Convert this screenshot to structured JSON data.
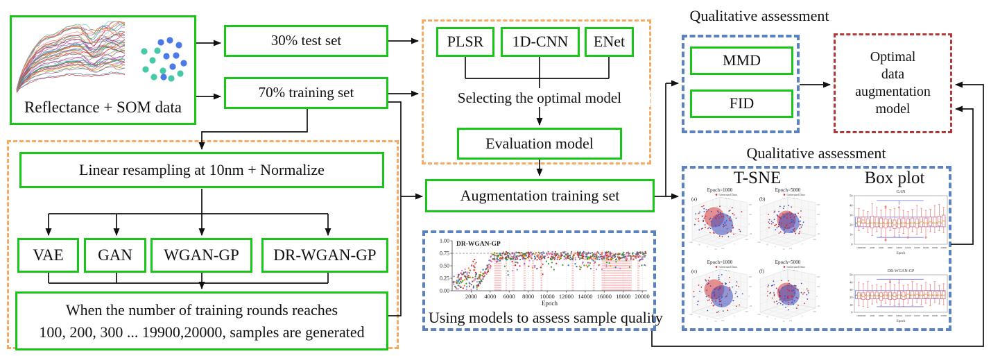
{
  "title": "Data augmentation workflow diagram",
  "colors": {
    "box_green": "#17c617",
    "dash_orange": "#f7aa63",
    "dash_blue": "#5a82c3",
    "dash_red": "#b03a3a",
    "line_black": "#111111"
  },
  "flow": {
    "reflectance_label": "Reflectance + SOM data",
    "test30": "30% test set",
    "train70": "70% training set",
    "plsr": "PLSR",
    "cnn": "1D-CNN",
    "enet": "ENet",
    "selecting": "Selecting the optimal model",
    "evaluation": "Evaluation model",
    "linear": "Linear resampling at 10nm + Normalize",
    "vae": "VAE",
    "gan": "GAN",
    "wgangp": "WGAN-GP",
    "drwgangp": "DR-WGAN-GP",
    "when_line1": "When the number of training rounds reaches",
    "when_line2": "100, 200, 300 ... 19900,20000, samples are generated",
    "augment": "Augmentation training set",
    "using_models": "Using models to assess sample quality",
    "qual1": "Qualitative assessment",
    "qual2": "Qualitative assessment",
    "mmd": "MMD",
    "fid": "FID",
    "optimal_line1": "Optimal",
    "optimal_line2": "data",
    "optimal_line3": "augmentation",
    "optimal_line4": "model"
  },
  "spectra": {
    "n_curves": 48,
    "palette": [
      "#e41a1c",
      "#377eb8",
      "#4daf4a",
      "#984ea3",
      "#ff7f00",
      "#a65628",
      "#f781bf",
      "#66c2a5",
      "#1b9e77",
      "#d95f02",
      "#7570b3",
      "#e7298a",
      "#2b8cbe",
      "#c51b8a",
      "#31a354",
      "#756bb1",
      "#636363",
      "#fdae61",
      "#80b1d3",
      "#fb8072"
    ]
  },
  "som_dots": {
    "blue_color": "#4b79e8",
    "teal_color": "#46c9a8",
    "teal": [
      [
        6,
        20
      ],
      [
        18,
        33
      ],
      [
        8,
        46
      ],
      [
        20,
        57
      ],
      [
        33,
        48
      ],
      [
        45,
        59
      ],
      [
        58,
        52
      ],
      [
        25,
        19
      ]
    ],
    "blue": [
      [
        30,
        7
      ],
      [
        43,
        4
      ],
      [
        56,
        11
      ],
      [
        38,
        27
      ],
      [
        52,
        26
      ],
      [
        63,
        37
      ],
      [
        47,
        42
      ],
      [
        34,
        57
      ]
    ]
  },
  "chart_data": [
    {
      "type": "scatter",
      "title": "DR-WGAN-GP",
      "xlabel": "Epoch",
      "xticks": [
        2000,
        4000,
        6000,
        8000,
        10000,
        12000,
        14000,
        16000,
        18000,
        20000
      ],
      "ytick_labels": [
        "0.00",
        "0.25",
        "0.50",
        "0.75",
        "1.00"
      ],
      "xlim": [
        0,
        20500
      ],
      "ylim": [
        0,
        1.0
      ],
      "hline": 0.75,
      "n_points": 780,
      "plateau": [
        0.62,
        0.78
      ],
      "point_colors": [
        "#d62728",
        "#2ca02c",
        "#1f77b4",
        "#ff7f0e",
        "#9467bd",
        "#e377c2",
        "#8c564b"
      ],
      "red_vline_clusters": [
        [
          4450,
          5150
        ],
        [
          5650,
          5720
        ],
        [
          6350,
          6520
        ],
        [
          7550,
          7680
        ],
        [
          8430,
          8560
        ],
        [
          9330,
          9460
        ],
        [
          12620,
          12760
        ],
        [
          14830,
          14960
        ],
        [
          15750,
          18850
        ],
        [
          19520,
          19680
        ]
      ],
      "trend_note": "scores rise from ~0.1 below epoch 2500 to a plateau of ~0.62-0.78 after epoch 4000"
    },
    {
      "type": "scatter3d_panels",
      "heading": "T-SNE",
      "panels": [
        {
          "tag": "(a)",
          "title": "Epoch=1000",
          "spread": 1.0
        },
        {
          "tag": "(b)",
          "title": "Epoch=5000",
          "spread": 0.8
        },
        {
          "tag": "(e)",
          "title": "Epoch=1000",
          "spread": 1.0
        },
        {
          "tag": "(f)",
          "title": "Epoch=5000",
          "spread": 0.85
        }
      ],
      "legend": [
        {
          "label": "Generated Data",
          "color": "#d62728"
        },
        {
          "label": "Real Data",
          "color": "#3b4cc0"
        }
      ],
      "tick_labels_left": [
        "-100",
        "-50",
        "0",
        "50"
      ],
      "tick_labels_right": [
        "200",
        "100",
        "0",
        "-100"
      ],
      "tick_labels_front": [
        "100",
        "0",
        "-100"
      ]
    },
    {
      "type": "box",
      "heading": "Box plot",
      "plots": [
        {
          "title": "GAN",
          "xlabel": "Epoch",
          "ylim": [
            0,
            50
          ],
          "ytick_labels": [
            "0",
            "10",
            "20",
            "30",
            "40",
            "50"
          ],
          "xtick_labels": [
            "1000",
            "2000",
            "4000",
            "6000",
            "8000",
            "10000",
            "12000",
            "14000",
            "16000",
            "18000",
            "20000"
          ],
          "green_line": 22,
          "blue_box": [
            18,
            28
          ],
          "blue_caps": [
            7,
            45
          ],
          "cap_span": [
            5000,
            15500
          ],
          "boxes": [
            [
              14,
              19,
              23,
              27,
              37
            ],
            [
              16,
              22,
              25,
              28,
              35
            ],
            [
              12,
              18,
              21,
              26,
              34
            ],
            [
              9,
              17,
              22,
              29,
              42
            ],
            [
              13,
              18,
              22,
              28,
              38
            ],
            [
              8,
              17,
              21,
              27,
              35
            ],
            [
              4,
              17,
              21,
              26,
              39
            ],
            [
              14,
              18,
              22,
              26,
              36
            ],
            [
              8,
              16,
              20,
              25,
              37
            ],
            [
              12,
              17,
              21,
              26,
              38
            ],
            [
              11,
              18,
              22,
              27,
              35
            ],
            [
              7,
              17,
              21,
              26,
              34
            ],
            [
              13,
              18,
              22,
              27,
              36
            ],
            [
              10,
              17,
              21,
              26,
              40
            ],
            [
              12,
              18,
              23,
              28,
              37
            ],
            [
              7,
              18,
              22,
              27,
              35
            ],
            [
              13,
              19,
              23,
              28,
              36
            ],
            [
              12,
              18,
              22,
              28,
              40
            ],
            [
              14,
              19,
              23,
              29,
              41
            ],
            [
              12,
              18,
              24,
              30,
              38
            ]
          ],
          "outliers": [
            [
              7000,
              37.5
            ],
            [
              7000,
              38.8
            ],
            [
              7000,
              5
            ],
            [
              7000,
              4
            ],
            [
              10000,
              38
            ],
            [
              12000,
              7
            ],
            [
              16000,
              7
            ]
          ]
        },
        {
          "title": "DR-WGAN-GP",
          "xlabel": "Epoch",
          "ylim": [
            0,
            50
          ],
          "ytick_labels": [
            "0",
            "10",
            "20",
            "30",
            "40",
            "50"
          ],
          "xtick_labels": [
            "1000",
            "2000",
            "4000",
            "6000",
            "8000",
            "10000",
            "12000",
            "14000",
            "16000",
            "18000",
            "20000"
          ],
          "green_line": 23,
          "blue_box": [
            18,
            29
          ],
          "blue_caps": [
            7.5,
            44
          ],
          "cap_span": [
            5000,
            15500
          ],
          "boxes": [
            [
              9,
              18,
              22,
              26,
              40
            ],
            [
              8,
              17,
              21,
              26,
              38
            ],
            [
              6,
              17,
              22,
              27,
              41
            ],
            [
              11,
              18,
              22,
              27,
              36
            ],
            [
              13,
              18,
              22,
              27,
              37
            ],
            [
              9,
              16,
              21,
              26,
              35
            ],
            [
              12,
              18,
              23,
              27,
              38
            ],
            [
              10,
              17,
              22,
              27,
              40
            ],
            [
              9,
              17,
              21,
              26,
              37
            ],
            [
              11,
              18,
              23,
              28,
              39
            ],
            [
              8,
              17,
              21,
              27,
              36
            ],
            [
              12,
              18,
              24,
              29,
              37
            ],
            [
              9,
              18,
              23,
              28,
              41
            ],
            [
              13,
              19,
              24,
              28,
              38
            ],
            [
              10,
              18,
              23,
              28,
              36
            ],
            [
              12,
              19,
              24,
              29,
              40
            ],
            [
              9,
              18,
              23,
              28,
              37
            ],
            [
              13,
              19,
              23,
              28,
              41
            ],
            [
              11,
              18,
              23,
              28,
              36
            ],
            [
              10,
              18,
              23,
              28,
              38
            ]
          ],
          "outliers": [
            [
              8000,
              40
            ],
            [
              8000,
              41.8
            ]
          ]
        }
      ]
    }
  ]
}
